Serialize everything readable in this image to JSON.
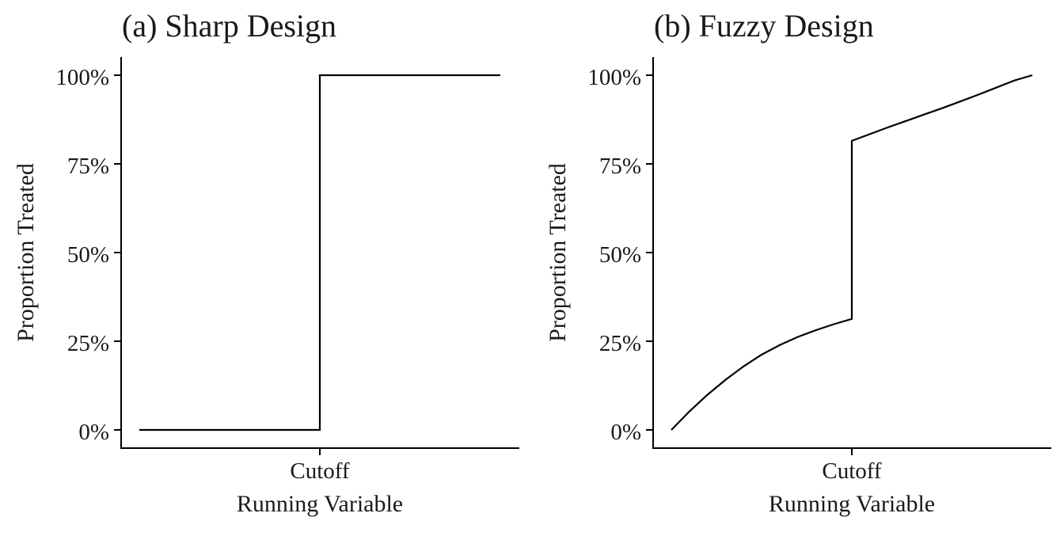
{
  "chart_data": [
    {
      "type": "line",
      "title": "(a) Sharp Design",
      "xlabel": "Running Variable",
      "ylabel": "Proportion Treated",
      "x_tick_labels": [
        "Cutoff"
      ],
      "y_tick_labels": [
        "0%",
        "25%",
        "50%",
        "75%",
        "100%"
      ],
      "y_ticks": [
        0,
        0.25,
        0.5,
        0.75,
        1.0
      ],
      "xlim": [
        -1,
        1
      ],
      "ylim": [
        0,
        1
      ],
      "cutoff": 0,
      "grid": false,
      "series": [
        {
          "points": [
            [
              -1,
              0
            ],
            [
              0,
              0
            ],
            [
              0,
              1
            ],
            [
              1,
              1
            ]
          ]
        }
      ]
    },
    {
      "type": "line",
      "title": "(b) Fuzzy Design",
      "xlabel": "Running Variable",
      "ylabel": "Proportion Treated",
      "x_tick_labels": [
        "Cutoff"
      ],
      "y_tick_labels": [
        "0%",
        "25%",
        "50%",
        "75%",
        "100%"
      ],
      "y_ticks": [
        0,
        0.25,
        0.5,
        0.75,
        1.0
      ],
      "xlim": [
        -1,
        1
      ],
      "ylim": [
        0,
        1
      ],
      "cutoff": 0,
      "grid": false,
      "series": [
        {
          "points": [
            [
              -1,
              0
            ],
            [
              -0.9,
              0.052
            ],
            [
              -0.8,
              0.099
            ],
            [
              -0.7,
              0.141
            ],
            [
              -0.6,
              0.179
            ],
            [
              -0.5,
              0.212
            ],
            [
              -0.4,
              0.239
            ],
            [
              -0.3,
              0.262
            ],
            [
              -0.2,
              0.281
            ],
            [
              -0.1,
              0.298
            ],
            [
              0,
              0.313
            ],
            [
              0,
              0.815
            ],
            [
              0.1,
              0.834
            ],
            [
              0.2,
              0.853
            ],
            [
              0.3,
              0.871
            ],
            [
              0.4,
              0.889
            ],
            [
              0.5,
              0.907
            ],
            [
              0.6,
              0.926
            ],
            [
              0.7,
              0.945
            ],
            [
              0.8,
              0.965
            ],
            [
              0.9,
              0.985
            ],
            [
              1,
              1.0
            ]
          ]
        }
      ]
    }
  ]
}
